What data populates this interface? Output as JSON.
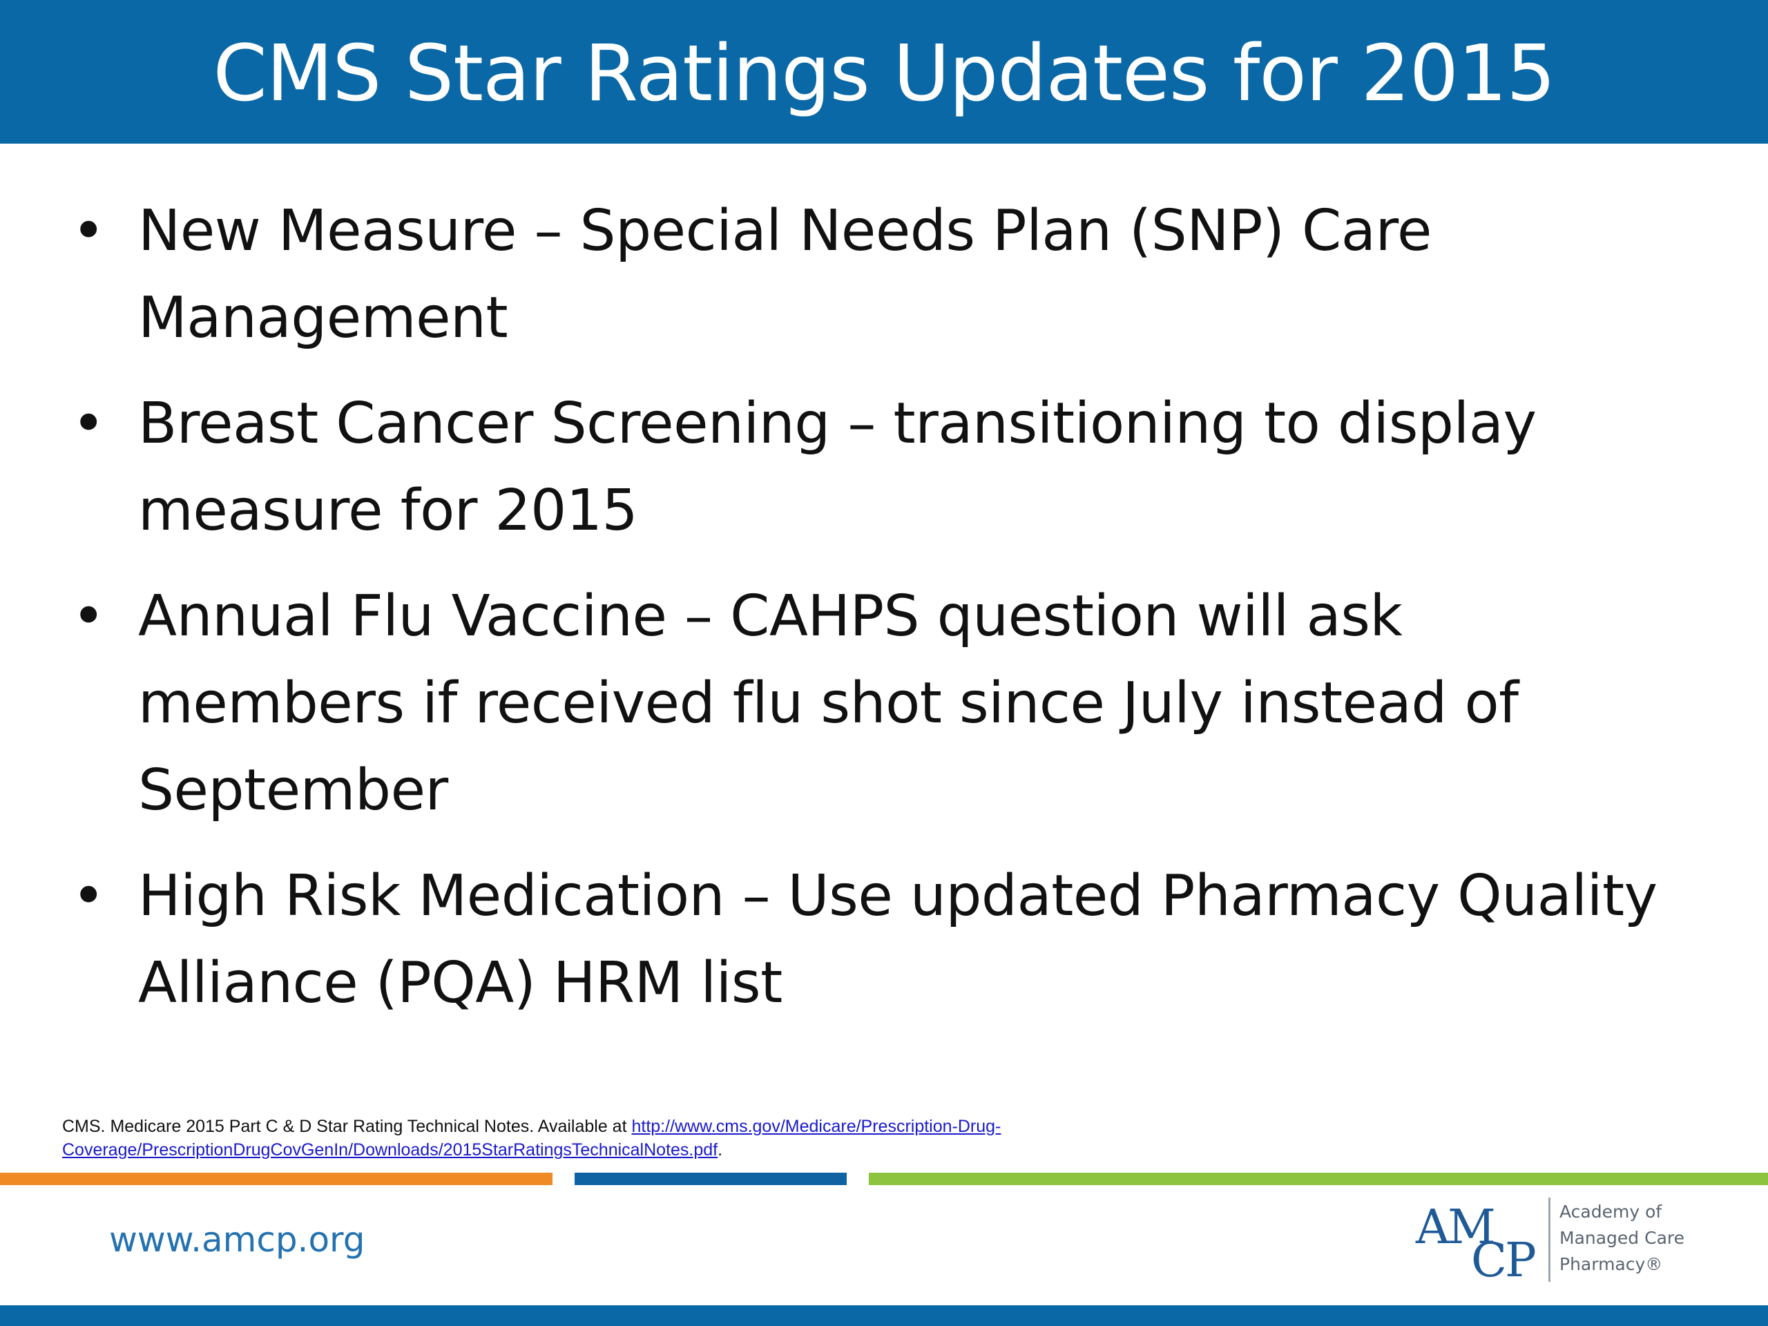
{
  "slide": {
    "title": "CMS Star Ratings Updates for 2015",
    "bullets": [
      "New Measure – Special Needs Plan (SNP) Care Management",
      "Breast Cancer Screening – transitioning to display measure for 2015",
      "Annual Flu Vaccine – CAHPS question will ask members if received flu shot since July instead of September",
      "High Risk Medication – Use updated Pharmacy Quality Alliance (PQA) HRM list"
    ],
    "bullet_glyph": "•"
  },
  "citation": {
    "text": "CMS.  Medicare 2015 Part C & D Star Rating Technical Notes.  Available at ",
    "link_text": "http://www.cms.gov/Medicare/Prescription-Drug-Coverage/PrescriptionDrugCovGenIn/Downloads/2015StarRatingsTechnicalNotes.pdf",
    "suffix": "."
  },
  "footer": {
    "website": "www.amcp.org",
    "logo_am": "AM",
    "logo_cp": "CP",
    "logo_line1": "Academy of",
    "logo_line2": "Managed Care",
    "logo_line3": "Pharmacy®"
  },
  "colors": {
    "title_bar": "#0a68a6",
    "stripe_orange": "#f08a24",
    "stripe_blue": "#0f63a3",
    "stripe_green": "#8cc43f",
    "website_text": "#2472b0",
    "logo": "#1f5a97"
  }
}
